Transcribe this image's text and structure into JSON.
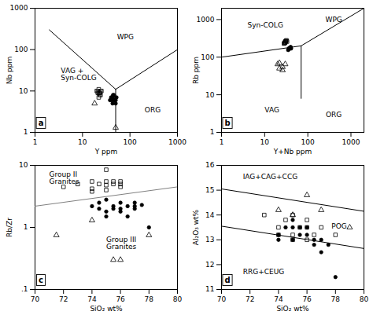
{
  "chart_data": [
    {
      "type": "scatter",
      "title": "a",
      "xlabel": "Y ppm",
      "ylabel": "Nb ppm",
      "log": true,
      "xlim": [
        1,
        1000
      ],
      "ylim": [
        1,
        1000
      ],
      "xticks": [
        1,
        10,
        100,
        1000
      ],
      "yticks": [
        1,
        10,
        100,
        1000
      ],
      "series": [
        {
          "marker": "square",
          "color": "black",
          "x": [
            20,
            22,
            24,
            23,
            21,
            23,
            25,
            22,
            21,
            23,
            24,
            22
          ],
          "y": [
            10,
            11,
            10,
            9,
            9,
            8,
            10,
            9,
            10,
            9,
            8,
            7
          ]
        },
        {
          "marker": "circle",
          "color": "black",
          "x": [
            40,
            44,
            48,
            42,
            46,
            52,
            38,
            44,
            50,
            43,
            46,
            50,
            42
          ],
          "y": [
            7,
            8,
            6,
            7,
            8,
            7,
            6,
            7,
            6,
            5,
            6,
            5,
            6
          ]
        },
        {
          "marker": "triangle",
          "color": "black",
          "x": [
            18,
            50
          ],
          "y": [
            5,
            1.3
          ]
        }
      ],
      "lines": [
        {
          "color": "black",
          "x": [
            2,
            50
          ],
          "y": [
            300,
            11
          ]
        },
        {
          "color": "black",
          "x": [
            50,
            50
          ],
          "y": [
            1,
            11
          ]
        },
        {
          "color": "black",
          "x": [
            50,
            1000
          ],
          "y": [
            11,
            100
          ]
        }
      ],
      "annotations": [
        {
          "text": "WPG",
          "x": 80,
          "y": 200,
          "align": "center"
        },
        {
          "text": "VAG +\nSyn-COLG",
          "x": 3.5,
          "y": 25,
          "align": "left"
        },
        {
          "text": "ORG",
          "x": 300,
          "y": 3.5,
          "align": "center"
        }
      ]
    },
    {
      "type": "scatter",
      "title": "b",
      "xlabel": "Y+Nb ppm",
      "ylabel": "Rb ppm",
      "log": true,
      "xlim": [
        1,
        2000
      ],
      "ylim": [
        1,
        2000
      ],
      "xticks": [
        1,
        10,
        100,
        1000
      ],
      "yticks": [
        1,
        10,
        100,
        1000
      ],
      "series": [
        {
          "marker": "square",
          "color": "black",
          "x": [
            28,
            30,
            32,
            29,
            31,
            33,
            30,
            29,
            31,
            30
          ],
          "y": [
            230,
            260,
            280,
            240,
            270,
            260,
            250,
            235,
            265,
            245
          ]
        },
        {
          "marker": "circle",
          "color": "black",
          "x": [
            36,
            38,
            40,
            37,
            39,
            41,
            35,
            37,
            40,
            36,
            38
          ],
          "y": [
            160,
            175,
            185,
            165,
            180,
            170,
            155,
            175,
            185,
            165,
            175
          ]
        },
        {
          "marker": "triangle",
          "color": "black",
          "x": [
            20,
            22,
            26,
            30,
            22,
            26
          ],
          "y": [
            65,
            50,
            45,
            65,
            70,
            55
          ]
        }
      ],
      "lines": [
        {
          "color": "black",
          "x": [
            1,
            70
          ],
          "y": [
            100,
            200
          ]
        },
        {
          "color": "black",
          "x": [
            70,
            70
          ],
          "y": [
            8,
            200
          ]
        },
        {
          "color": "black",
          "x": [
            70,
            2000
          ],
          "y": [
            200,
            2000
          ]
        }
      ],
      "annotations": [
        {
          "text": "Syn-COLG",
          "x": 4,
          "y": 700,
          "align": "left"
        },
        {
          "text": "WPG",
          "x": 400,
          "y": 1000,
          "align": "center"
        },
        {
          "text": "VAG",
          "x": 10,
          "y": 4,
          "align": "left"
        },
        {
          "text": "ORG",
          "x": 400,
          "y": 3,
          "align": "center"
        }
      ]
    },
    {
      "type": "scatter",
      "title": "c",
      "xlabel": "SiO₂ wt%",
      "ylabel": "Rb/Zr",
      "log": "y",
      "xlim": [
        70,
        80
      ],
      "ylim": [
        0.1,
        10
      ],
      "xticks": [
        70,
        72,
        74,
        76,
        78,
        80
      ],
      "yticks": [
        {
          "value": 0.1,
          "label": ".1"
        },
        1,
        10
      ],
      "series": [
        {
          "marker": "square",
          "color": "black",
          "x": [
            72,
            73,
            74,
            74,
            74.5,
            75,
            75,
            75,
            75.5,
            76,
            76,
            75,
            75.5,
            76,
            74
          ],
          "y": [
            4.5,
            5.0,
            4.2,
            5.5,
            5.0,
            4.8,
            5.5,
            8.5,
            5.0,
            5.5,
            4.5,
            4.0,
            5.5,
            5.0,
            3.8
          ]
        },
        {
          "marker": "circle",
          "color": "black",
          "x": [
            74,
            74.5,
            75,
            75,
            75.5,
            76,
            76,
            76.5,
            77,
            77,
            77.5,
            78,
            75,
            76,
            77,
            74.5,
            75.5,
            76.5
          ],
          "y": [
            2.2,
            2.5,
            2.8,
            1.8,
            2.2,
            2.5,
            1.8,
            2.2,
            2.0,
            2.5,
            2.3,
            1.0,
            1.5,
            2.0,
            2.2,
            2.0,
            2.0,
            1.5
          ]
        },
        {
          "marker": "triangle",
          "color": "black",
          "x": [
            71.5,
            74,
            75.5,
            76,
            78
          ],
          "y": [
            0.75,
            1.3,
            0.3,
            0.3,
            0.75
          ]
        }
      ],
      "lines": [
        {
          "color": "gray",
          "x": [
            70,
            80
          ],
          "y": [
            2.2,
            4.5
          ]
        }
      ],
      "annotations": [
        {
          "text": "Group II\nGranites",
          "x": 71.0,
          "y": 6.2,
          "align": "left"
        },
        {
          "text": "Group III\nGranites",
          "x": 75.0,
          "y": 0.55,
          "align": "left"
        }
      ]
    },
    {
      "type": "scatter",
      "title": "d",
      "xlabel": "SiO₂ wt%",
      "ylabel": "Al₂O₃ wt%",
      "xlim": [
        70,
        80
      ],
      "ylim": [
        11,
        16
      ],
      "xticks": [
        70,
        72,
        74,
        76,
        78,
        80
      ],
      "yticks": [
        11,
        12,
        13,
        14,
        15,
        16
      ],
      "series": [
        {
          "marker": "square",
          "color": "black",
          "x": [
            73,
            74,
            74.5,
            75,
            75,
            75.5,
            76,
            76,
            76.5,
            77,
            78,
            75,
            74,
            76
          ],
          "y": [
            14.0,
            13.5,
            13.8,
            13.2,
            14.0,
            13.5,
            13.0,
            13.8,
            13.2,
            13.5,
            13.2,
            13.0,
            13.2,
            13.5
          ]
        },
        {
          "marker": "circle",
          "color": "black",
          "x": [
            74,
            74.5,
            75,
            75,
            75.5,
            76,
            76.5,
            77,
            77.5,
            78,
            75,
            76,
            74,
            75.5,
            76.5,
            77
          ],
          "y": [
            13.2,
            13.5,
            13.0,
            13.8,
            13.2,
            13.5,
            12.8,
            13.0,
            12.8,
            11.5,
            13.5,
            13.2,
            13.0,
            13.5,
            13.0,
            12.5
          ]
        },
        {
          "marker": "triangle",
          "color": "black",
          "x": [
            74,
            75,
            76,
            77,
            79
          ],
          "y": [
            14.2,
            14.0,
            14.8,
            14.2,
            13.5
          ]
        }
      ],
      "lines": [
        {
          "color": "black",
          "x": [
            70,
            80
          ],
          "y": [
            15.05,
            14.15
          ]
        },
        {
          "color": "black",
          "x": [
            70,
            80
          ],
          "y": [
            13.55,
            12.65
          ]
        }
      ],
      "annotations": [
        {
          "text": "IAG+CAG+CCG",
          "x": 71.5,
          "y": 15.55,
          "align": "left"
        },
        {
          "text": "POG",
          "x": 78.8,
          "y": 13.55,
          "align": "right"
        },
        {
          "text": "RRG+CEUG",
          "x": 71.5,
          "y": 11.7,
          "align": "left"
        }
      ]
    }
  ]
}
